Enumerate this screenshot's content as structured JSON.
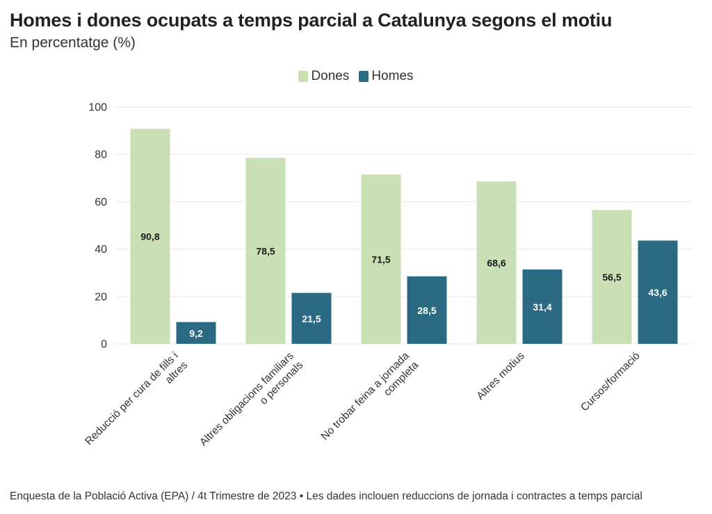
{
  "header": {
    "title": "Homes i dones ocupats a temps parcial a Catalunya segons el motiu",
    "subtitle": "En percentatge (%)"
  },
  "footer": {
    "note": "Enquesta de la Població Activa (EPA) / 4t Trimestre de 2023 • Les dades inclouen reduccions de jornada i contractes a temps parcial"
  },
  "colors": {
    "dones": "#c8e0b3",
    "homes": "#2b6a82",
    "grid": "#e6e6e6",
    "axis_text": "#333333"
  },
  "chart_data": {
    "type": "bar",
    "title": "Homes i dones ocupats a temps parcial a Catalunya segons el motiu",
    "subtitle": "En percentatge (%)",
    "xlabel": "",
    "ylabel": "",
    "ylim": [
      0,
      100
    ],
    "yticks": [
      0,
      20,
      40,
      60,
      80,
      100
    ],
    "grid": true,
    "legend": "top-center",
    "categories": [
      [
        "Reducció per cura de fills i",
        "altres"
      ],
      [
        "Altres obligacions familiars",
        "o personals"
      ],
      [
        "No trobar feina a jornada",
        "completa"
      ],
      [
        "Altres motius"
      ],
      [
        "Cursos/formació"
      ]
    ],
    "series": [
      {
        "name": "Dones",
        "values": [
          90.8,
          78.5,
          71.5,
          68.6,
          56.5
        ],
        "labels": [
          "90,8",
          "78,5",
          "71,5",
          "68,6",
          "56,5"
        ]
      },
      {
        "name": "Homes",
        "values": [
          9.2,
          21.5,
          28.5,
          31.4,
          43.6
        ],
        "labels": [
          "9,2",
          "21,5",
          "28,5",
          "31,4",
          "43,6"
        ]
      }
    ]
  }
}
